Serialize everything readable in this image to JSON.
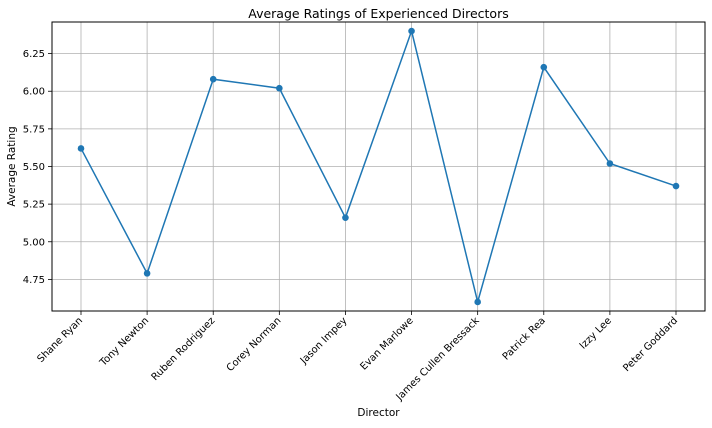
{
  "chart_data": {
    "type": "line",
    "title": "Average Ratings of Experienced Directors",
    "xlabel": "Director",
    "ylabel": "Average Rating",
    "categories": [
      "Shane Ryan",
      "Tony Newton",
      "Ruben Rodriguez",
      "Corey Norman",
      "Jason Impey",
      "Evan Marlowe",
      "James Cullen Bressack",
      "Patrick Rea",
      "Izzy Lee",
      "Peter Goddard"
    ],
    "values": [
      5.62,
      4.79,
      6.08,
      6.02,
      5.16,
      6.4,
      4.6,
      6.16,
      5.52,
      5.37
    ],
    "ylim": [
      4.54,
      6.46
    ],
    "yticks": [
      "4.75",
      "5.00",
      "5.25",
      "5.50",
      "5.75",
      "6.00",
      "6.25"
    ],
    "grid": true,
    "marker": "circle",
    "color": "#1f77b4"
  }
}
